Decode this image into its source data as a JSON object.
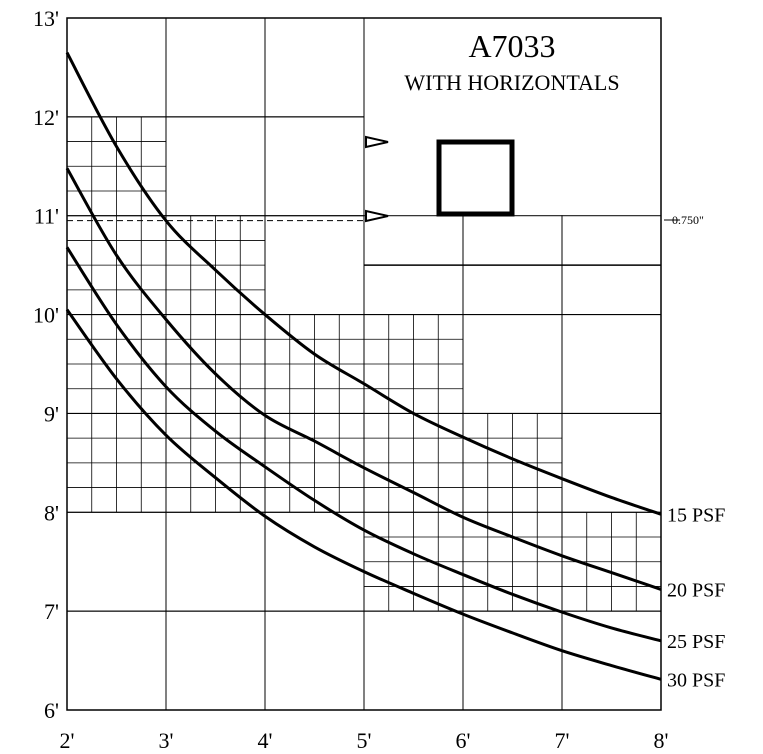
{
  "chart_data": {
    "type": "line",
    "title": "A7033",
    "subtitle": "WITH HORIZONTALS",
    "xlabel": "",
    "ylabel": "",
    "xlim": [
      2,
      8
    ],
    "ylim": [
      6,
      13
    ],
    "x_ticks": [
      2,
      3,
      4,
      5,
      6,
      7,
      8
    ],
    "y_ticks": [
      6,
      7,
      8,
      9,
      10,
      11,
      12,
      13
    ],
    "x_tick_labels": [
      "2'",
      "3'",
      "4'",
      "5'",
      "6'",
      "7'",
      "8'"
    ],
    "y_tick_labels": [
      "6'",
      "7'",
      "8'",
      "9'",
      "10'",
      "11'",
      "12'",
      "13'"
    ],
    "dimension_label": "0.750\"",
    "dimension_line_y": 10.95,
    "grid": true,
    "series": [
      {
        "name": "15 PSF",
        "x": [
          2,
          2.5,
          3,
          3.5,
          4,
          4.5,
          5,
          5.5,
          6,
          6.5,
          7,
          7.5,
          8
        ],
        "values": [
          12.65,
          11.7,
          10.95,
          10.45,
          10.0,
          9.6,
          9.3,
          9.0,
          8.76,
          8.54,
          8.34,
          8.15,
          7.98
        ]
      },
      {
        "name": "20 PSF",
        "x": [
          2,
          2.5,
          3,
          3.5,
          4,
          4.5,
          5,
          5.5,
          6,
          6.5,
          7,
          7.5,
          8
        ],
        "values": [
          11.48,
          10.6,
          9.95,
          9.4,
          8.98,
          8.72,
          8.45,
          8.2,
          7.95,
          7.75,
          7.56,
          7.39,
          7.22
        ]
      },
      {
        "name": "25 PSF",
        "x": [
          2,
          2.5,
          3,
          3.5,
          4,
          4.5,
          5,
          5.5,
          6,
          6.5,
          7,
          7.5,
          8
        ],
        "values": [
          10.68,
          9.9,
          9.27,
          8.82,
          8.46,
          8.12,
          7.82,
          7.58,
          7.37,
          7.17,
          6.99,
          6.83,
          6.7
        ]
      },
      {
        "name": "30 PSF",
        "x": [
          2,
          2.5,
          3,
          3.5,
          4,
          4.5,
          5,
          5.5,
          6,
          6.5,
          7,
          7.5,
          8
        ],
        "values": [
          10.05,
          9.35,
          8.78,
          8.35,
          7.96,
          7.65,
          7.4,
          7.18,
          6.97,
          6.78,
          6.6,
          6.45,
          6.31
        ]
      }
    ]
  }
}
